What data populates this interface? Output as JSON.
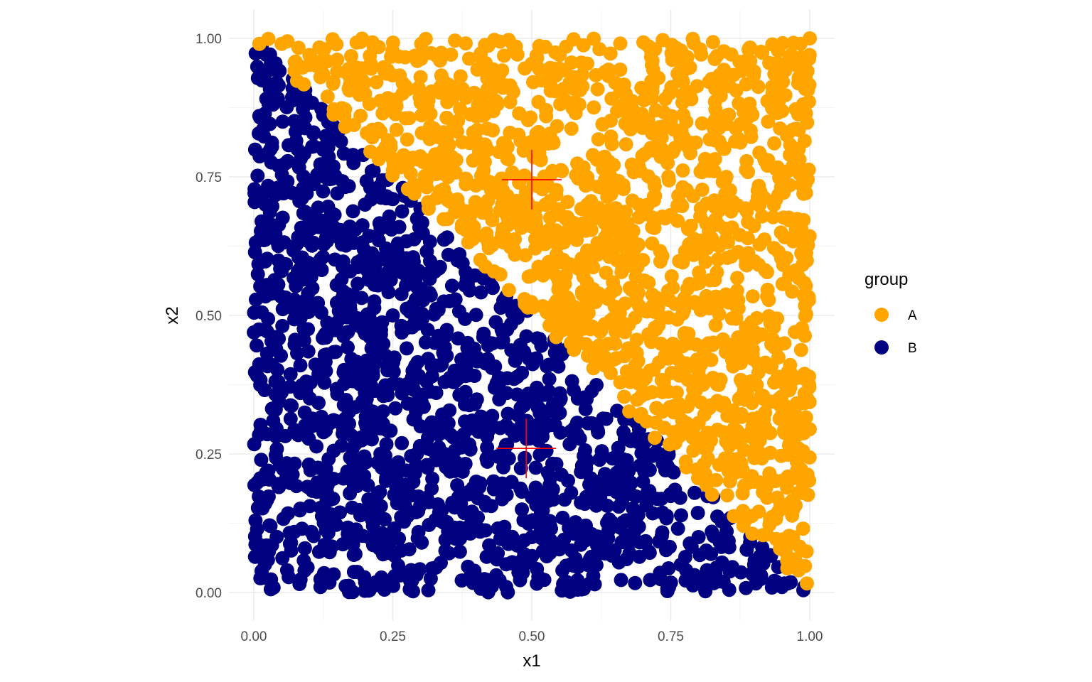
{
  "chart_data": {
    "type": "scatter",
    "title": "",
    "xlabel": "x1",
    "ylabel": "x2",
    "xlim": [
      0,
      1
    ],
    "ylim": [
      0,
      1
    ],
    "x_ticks": [
      "0.00",
      "0.25",
      "0.50",
      "0.75",
      "1.00"
    ],
    "y_ticks": [
      "0.00",
      "0.25",
      "0.50",
      "0.75",
      "1.00"
    ],
    "grid": true,
    "legend": {
      "title": "group",
      "placement": "right",
      "entries": [
        {
          "label": "A",
          "color": "#FFA500"
        },
        {
          "label": "B",
          "color": "#000080"
        }
      ]
    },
    "series": [
      {
        "name": "A",
        "color": "#FFA500",
        "region": "x2 > 1 - x1",
        "n_points_approx": 1500,
        "sample_points": [
          [
            0.01,
            0.99
          ],
          [
            0.05,
            0.99
          ],
          [
            0.1,
            0.97
          ],
          [
            0.15,
            0.94
          ],
          [
            0.2,
            0.9
          ],
          [
            0.3,
            0.93
          ],
          [
            0.4,
            0.86
          ],
          [
            0.5,
            0.8
          ],
          [
            0.55,
            0.97
          ],
          [
            0.6,
            0.7
          ],
          [
            0.65,
            0.92
          ],
          [
            0.7,
            0.6
          ],
          [
            0.75,
            0.85
          ],
          [
            0.8,
            0.4
          ],
          [
            0.85,
            0.75
          ],
          [
            0.9,
            0.94
          ],
          [
            0.9,
            0.2
          ],
          [
            0.94,
            0.88
          ],
          [
            0.96,
            0.76
          ],
          [
            0.98,
            0.8
          ],
          [
            0.98,
            0.34
          ],
          [
            0.98,
            0.22
          ],
          [
            0.97,
            0.1
          ],
          [
            0.98,
            0.04
          ],
          [
            1.0,
            1.0
          ]
        ]
      },
      {
        "name": "B",
        "color": "#000080",
        "region": "x2 < 1 - x1",
        "n_points_approx": 1500,
        "sample_points": [
          [
            0.01,
            0.86
          ],
          [
            0.03,
            0.8
          ],
          [
            0.07,
            0.91
          ],
          [
            0.05,
            0.58
          ],
          [
            0.04,
            0.44
          ],
          [
            0.06,
            0.04
          ],
          [
            0.02,
            0.05
          ],
          [
            0.03,
            0.12
          ],
          [
            0.12,
            0.01
          ],
          [
            0.2,
            0.7
          ],
          [
            0.25,
            0.5
          ],
          [
            0.3,
            0.3
          ],
          [
            0.4,
            0.2
          ],
          [
            0.5,
            0.1
          ],
          [
            0.6,
            0.05
          ],
          [
            0.7,
            0.2
          ],
          [
            0.8,
            0.1
          ],
          [
            0.9,
            0.05
          ],
          [
            0.95,
            0.01
          ],
          [
            0.99,
            0.01
          ]
        ]
      }
    ],
    "centroids": [
      {
        "group": "A",
        "x": 0.5,
        "y": 0.745,
        "marker": "+",
        "color": "#FF0000"
      },
      {
        "group": "B",
        "x": 0.49,
        "y": 0.26,
        "marker": "+",
        "color": "#FF0000"
      }
    ]
  }
}
